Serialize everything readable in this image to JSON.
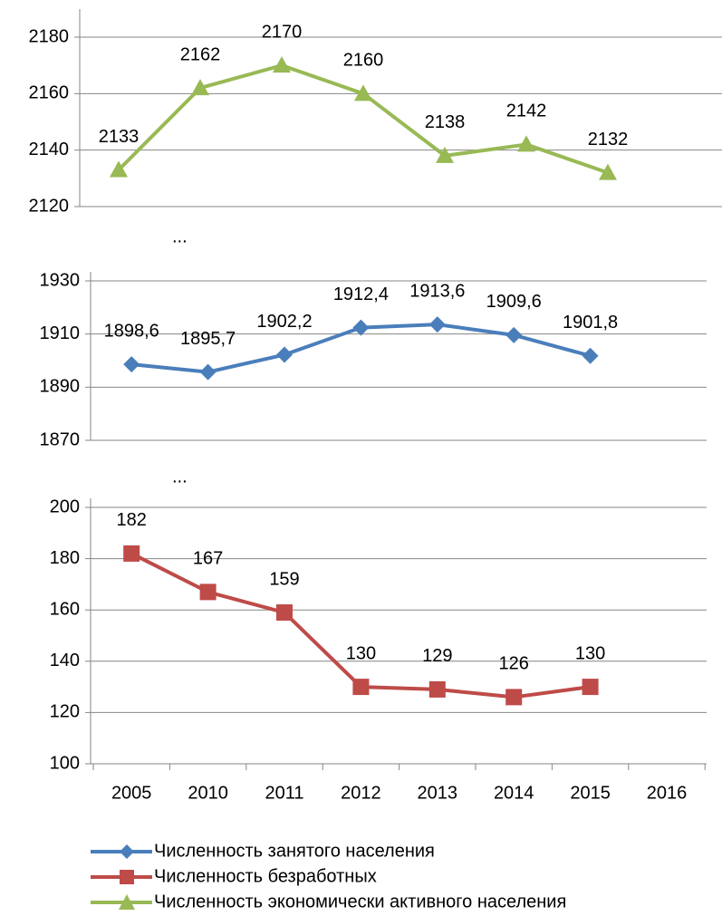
{
  "chart_data": [
    {
      "type": "line",
      "ylim": [
        2120,
        2180
      ],
      "yticks": [
        2120,
        2140,
        2160,
        2180
      ],
      "grid": true,
      "annotation": "...",
      "series": [
        {
          "name": "Численность экономически активного населения",
          "color": "#98b954",
          "marker": "triangle",
          "values": [
            2133,
            2162,
            2170,
            2160,
            2138,
            2142,
            2132,
            null
          ]
        }
      ]
    },
    {
      "type": "line",
      "ylim": [
        1870,
        1930
      ],
      "yticks": [
        1870,
        1890,
        1910,
        1930
      ],
      "grid": true,
      "annotation": "...",
      "series": [
        {
          "name": "Численность занятого населения",
          "color": "#4a7ebb",
          "marker": "diamond",
          "values": [
            1898.6,
            1895.7,
            1902.2,
            1912.4,
            1913.6,
            1909.6,
            1901.8,
            null
          ],
          "value_labels": [
            "1898,6",
            "1895,7",
            "1902,2",
            "1912,4",
            "1913,6",
            "1909,6",
            "1901,8",
            null
          ]
        }
      ]
    },
    {
      "type": "line",
      "ylim": [
        100,
        200
      ],
      "yticks": [
        100,
        120,
        140,
        160,
        180,
        200
      ],
      "grid": true,
      "categories": [
        "2005",
        "2010",
        "2011",
        "2012",
        "2013",
        "2014",
        "2015",
        "2016"
      ],
      "series": [
        {
          "name": "Численность безработных",
          "color": "#be4b48",
          "marker": "square",
          "values": [
            182,
            167,
            159,
            130,
            129,
            126,
            130,
            null
          ]
        }
      ]
    }
  ]
}
